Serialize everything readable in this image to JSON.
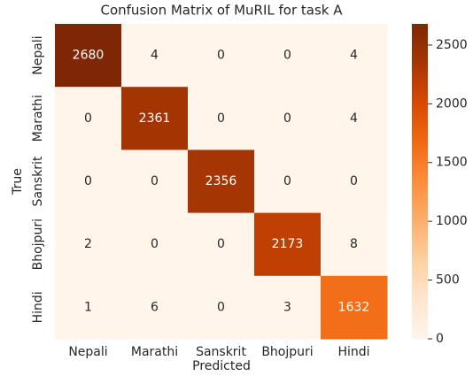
{
  "chart_data": {
    "type": "heatmap",
    "title": "Confusion Matrix of MuRIL for task A",
    "xlabel": "Predicted",
    "ylabel": "True",
    "x_categories": [
      "Nepali",
      "Marathi",
      "Sanskrit",
      "Bhojpuri",
      "Hindi"
    ],
    "y_categories": [
      "Nepali",
      "Marathi",
      "Sanskrit",
      "Bhojpuri",
      "Hindi"
    ],
    "values": [
      [
        2680,
        4,
        0,
        0,
        4
      ],
      [
        0,
        2361,
        0,
        0,
        4
      ],
      [
        0,
        0,
        2356,
        0,
        0
      ],
      [
        2,
        0,
        0,
        2173,
        8
      ],
      [
        1,
        6,
        0,
        3,
        1632
      ]
    ],
    "colormap": "Oranges",
    "zlim": [
      0,
      2680
    ],
    "zticks": [
      0,
      500,
      1000,
      1500,
      2000,
      2500
    ]
  }
}
